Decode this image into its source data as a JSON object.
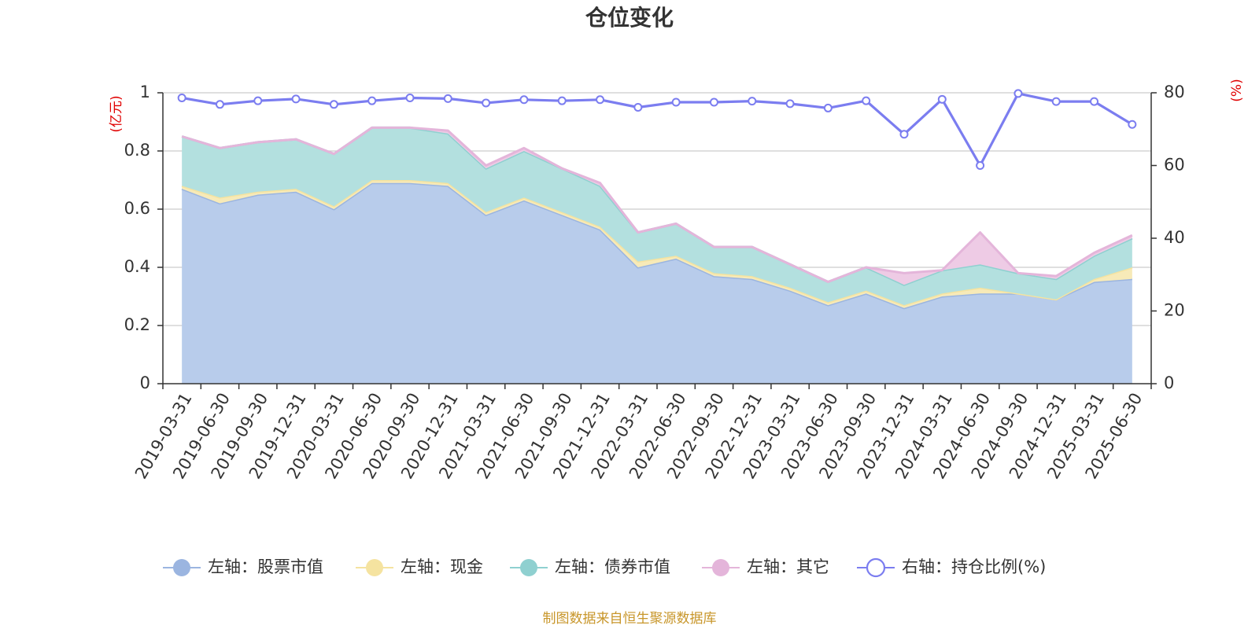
{
  "chart_data": {
    "type": "area",
    "title": "仓位变化",
    "left_unit": "(亿元)",
    "right_unit": "(%)",
    "categories": [
      "2019-03-31",
      "2019-06-30",
      "2019-09-30",
      "2019-12-31",
      "2020-03-31",
      "2020-06-30",
      "2020-09-30",
      "2020-12-31",
      "2021-03-31",
      "2021-06-30",
      "2021-09-30",
      "2021-12-31",
      "2022-03-31",
      "2022-06-30",
      "2022-09-30",
      "2022-12-31",
      "2023-03-31",
      "2023-06-30",
      "2023-09-30",
      "2023-12-31",
      "2024-03-31",
      "2024-06-30",
      "2024-09-30",
      "2024-12-31",
      "2025-03-31",
      "2025-06-30"
    ],
    "left_axis": {
      "min": 0,
      "max": 1,
      "ticks": [
        "0",
        "0.2",
        "0.4",
        "0.6",
        "0.8",
        "1"
      ]
    },
    "right_axis": {
      "min": 0,
      "max": 80,
      "ticks": [
        "0",
        "20",
        "40",
        "60",
        "80"
      ]
    },
    "series": [
      {
        "name": "左轴：股票市值",
        "axis": "left",
        "type": "area",
        "color": "#9bb5e0",
        "fill": "#b8cceb",
        "values": [
          0.67,
          0.62,
          0.65,
          0.66,
          0.6,
          0.69,
          0.69,
          0.68,
          0.58,
          0.63,
          0.58,
          0.53,
          0.4,
          0.43,
          0.37,
          0.36,
          0.32,
          0.27,
          0.31,
          0.26,
          0.3,
          0.31,
          0.31,
          0.29,
          0.35,
          0.36
        ]
      },
      {
        "name": "左轴：现金",
        "axis": "left",
        "type": "area",
        "color": "#f5e3a0",
        "fill": "#f7eab8",
        "values": [
          0.01,
          0.02,
          0.01,
          0.01,
          0.01,
          0.01,
          0.01,
          0.01,
          0.01,
          0.01,
          0.01,
          0.01,
          0.02,
          0.01,
          0.01,
          0.01,
          0.01,
          0.01,
          0.01,
          0.01,
          0.01,
          0.02,
          0.0,
          0.0,
          0.01,
          0.04
        ]
      },
      {
        "name": "左轴：债券市值",
        "axis": "left",
        "type": "area",
        "color": "#8fd0d0",
        "fill": "#b3e0df",
        "values": [
          0.17,
          0.17,
          0.17,
          0.17,
          0.18,
          0.18,
          0.18,
          0.17,
          0.15,
          0.16,
          0.15,
          0.14,
          0.1,
          0.11,
          0.09,
          0.1,
          0.08,
          0.07,
          0.08,
          0.07,
          0.08,
          0.08,
          0.07,
          0.07,
          0.08,
          0.1
        ]
      },
      {
        "name": "左轴：其它",
        "axis": "left",
        "type": "area",
        "color": "#e4b5da",
        "fill": "#eecbe5",
        "values": [
          0.0,
          0.0,
          0.0,
          0.0,
          0.0,
          0.0,
          0.0,
          0.01,
          0.01,
          0.01,
          0.0,
          0.01,
          0.0,
          0.0,
          0.0,
          0.0,
          0.0,
          0.0,
          0.0,
          0.04,
          0.0,
          0.11,
          0.0,
          0.01,
          0.01,
          0.01
        ]
      },
      {
        "name": "右轴：持仓比例(%)",
        "axis": "right",
        "type": "line",
        "color": "#7b7df0",
        "values": [
          78.6,
          76.8,
          77.8,
          78.3,
          76.8,
          77.8,
          78.6,
          78.4,
          77.2,
          78.1,
          77.8,
          78.1,
          76.0,
          77.4,
          77.4,
          77.7,
          77.0,
          75.8,
          77.8,
          68.6,
          78.2,
          60.0,
          79.8,
          77.6,
          77.6,
          71.3
        ]
      }
    ],
    "grid": true,
    "legend_position": "bottom"
  },
  "source_note": "制图数据来自恒生聚源数据库"
}
